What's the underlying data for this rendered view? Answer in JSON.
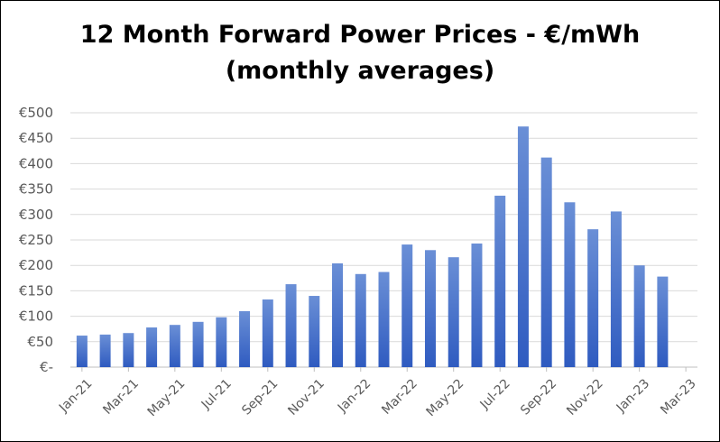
{
  "chart_data": {
    "type": "bar",
    "title": "12 Month Forward Power Prices - €/mWh",
    "subtitle": "(monthly averages)",
    "xlabel": "",
    "ylabel": "",
    "ylim": [
      0,
      500
    ],
    "yticks": [
      0,
      50,
      100,
      150,
      200,
      250,
      300,
      350,
      400,
      450,
      500
    ],
    "ytick_labels": [
      "€-",
      "€50",
      "€100",
      "€150",
      "€200",
      "€250",
      "€300",
      "€350",
      "€400",
      "€450",
      "€500"
    ],
    "categories": [
      "Jan-21",
      "Feb-21",
      "Mar-21",
      "Apr-21",
      "May-21",
      "Jun-21",
      "Jul-21",
      "Aug-21",
      "Sep-21",
      "Oct-21",
      "Nov-21",
      "Dec-21",
      "Jan-22",
      "Feb-22",
      "Mar-22",
      "Apr-22",
      "May-22",
      "Jun-22",
      "Jul-22",
      "Aug-22",
      "Sep-22",
      "Oct-22",
      "Nov-22",
      "Dec-22",
      "Jan-23",
      "Feb-23",
      "Mar-23"
    ],
    "xtick_labels": [
      "Jan-21",
      "Mar-21",
      "May-21",
      "Jul-21",
      "Sep-21",
      "Nov-21",
      "Jan-22",
      "Mar-22",
      "May-22",
      "Jul-22",
      "Sep-22",
      "Nov-22",
      "Jan-23",
      "Mar-23"
    ],
    "values": [
      62,
      64,
      67,
      78,
      83,
      89,
      98,
      110,
      133,
      163,
      140,
      204,
      183,
      187,
      241,
      230,
      216,
      243,
      337,
      473,
      412,
      324,
      271,
      306,
      200,
      178,
      null
    ],
    "grid": true,
    "legend": "none",
    "bar_color_top": "#6a8fd6",
    "bar_color_bottom": "#2f5bc0",
    "grid_color": "#d9d9d9"
  }
}
